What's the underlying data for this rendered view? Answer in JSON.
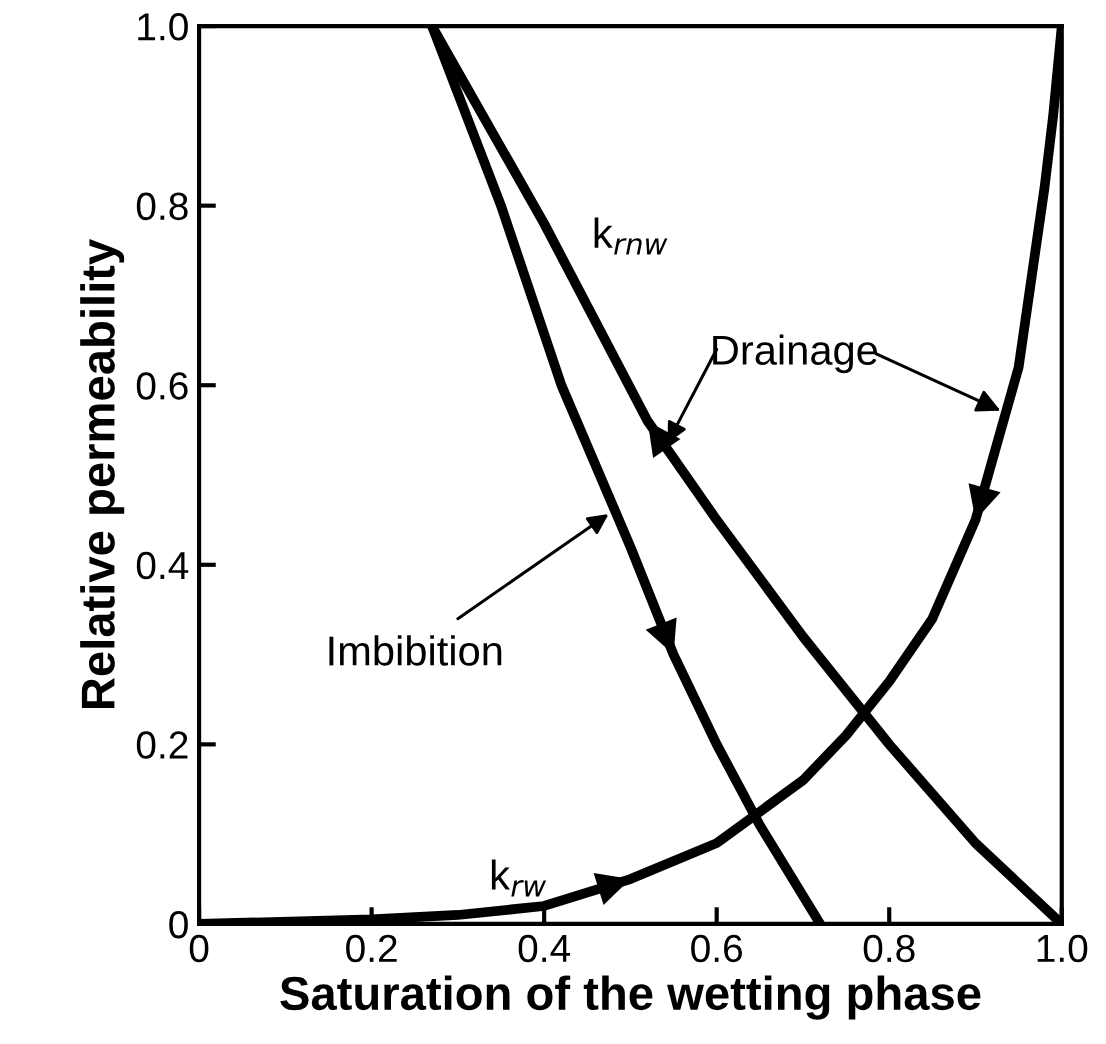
{
  "chart_data": {
    "type": "line",
    "xlabel": "Saturation of the wetting phase",
    "ylabel": "Relative permeability",
    "xlim": [
      0,
      1.0
    ],
    "ylim": [
      0,
      1.0
    ],
    "xticks": [
      0,
      0.2,
      0.4,
      0.6,
      0.8,
      {
        "value": 1,
        "label": "1.0"
      }
    ],
    "yticks": [
      0,
      0.2,
      0.4,
      0.6,
      0.8,
      {
        "value": 1,
        "label": "1.0"
      }
    ],
    "grid": false,
    "legend": false,
    "marker": "none",
    "line_style": "solid",
    "series": [
      {
        "color": "#000000",
        "x": [
          1.0,
          0.9,
          0.8,
          0.7,
          0.6,
          0.52,
          0.4,
          0.27
        ],
        "values": [
          0,
          0.09,
          0.2,
          0.32,
          0.45,
          0.56,
          0.78,
          1.0
        ]
      },
      {
        "color": "#000000",
        "x": [
          0.27,
          0.35,
          0.42,
          0.5,
          0.55,
          0.6,
          0.65,
          0.72
        ],
        "values": [
          1.0,
          0.8,
          0.6,
          0.42,
          0.3,
          0.2,
          0.11,
          0
        ]
      },
      {
        "color": "#000000",
        "x": [
          0,
          0.2,
          0.3,
          0.4,
          0.5,
          0.6,
          0.7,
          0.75,
          0.8,
          0.85,
          0.9,
          0.95,
          0.98,
          0.99,
          1.0
        ],
        "values": [
          0,
          0.005,
          0.01,
          0.02,
          0.05,
          0.09,
          0.16,
          0.21,
          0.27,
          0.34,
          0.45,
          0.62,
          0.82,
          0.9,
          1.0
        ]
      }
    ],
    "annotations": [
      "k$_{rnw}$",
      {
        "text": "Drainage",
        "x": 0.54,
        "y": 0.53
      },
      {
        "text": "Imbibition",
        "x": 0.48,
        "y": 0.46
      },
      "k$_{rw}$"
    ]
  }
}
